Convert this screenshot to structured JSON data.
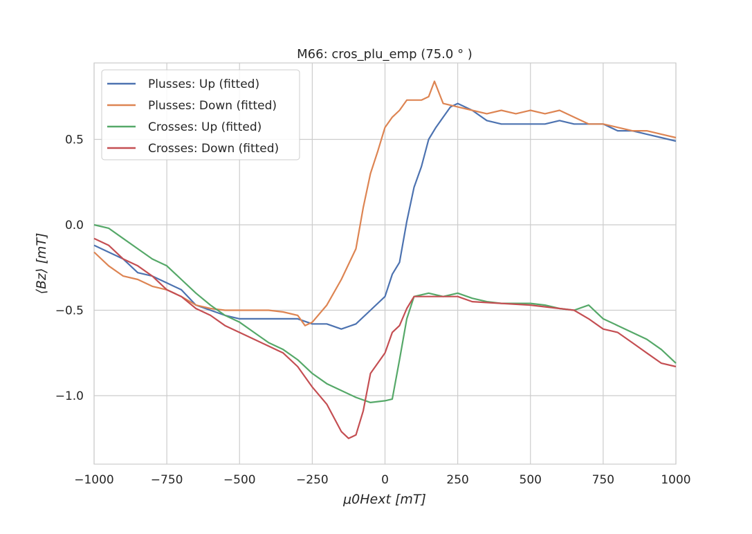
{
  "chart_data": {
    "type": "line",
    "title": "M66: cros_plu_emp (75.0$^\\circ$)",
    "title_display": "M66: cros_plu_emp (75.0 ° )",
    "xlabel": "μ0Hext [mT]",
    "ylabel": "⟨Bz⟩ [mT]",
    "xlim": [
      -1000,
      1000
    ],
    "ylim": [
      -1.4,
      0.95
    ],
    "grid": true,
    "legend_position": "top-left",
    "xticks": [
      -1000,
      -750,
      -500,
      -250,
      0,
      250,
      500,
      750,
      1000
    ],
    "xtick_labels": [
      "−1000",
      "−750",
      "−500",
      "−250",
      "0",
      "250",
      "500",
      "750",
      "1000"
    ],
    "yticks": [
      0.5,
      0.0,
      -0.5,
      -1.0
    ],
    "ytick_labels": [
      "0.5",
      "0.0",
      "−0.5",
      "−1.0"
    ],
    "series": [
      {
        "name": "Plusses: Up (fitted)",
        "color": "#4c72b0",
        "x": [
          -1000,
          -950,
          -900,
          -850,
          -800,
          -750,
          -700,
          -650,
          -600,
          -550,
          -500,
          -450,
          -400,
          -350,
          -300,
          -250,
          -200,
          -150,
          -100,
          -50,
          0,
          25,
          50,
          75,
          100,
          125,
          150,
          175,
          200,
          225,
          250,
          300,
          350,
          400,
          450,
          500,
          550,
          600,
          650,
          700,
          750,
          800,
          850,
          900,
          950,
          1000
        ],
        "y": [
          -0.12,
          -0.16,
          -0.2,
          -0.28,
          -0.3,
          -0.34,
          -0.38,
          -0.47,
          -0.5,
          -0.53,
          -0.55,
          -0.55,
          -0.55,
          -0.55,
          -0.55,
          -0.58,
          -0.58,
          -0.61,
          -0.58,
          -0.5,
          -0.42,
          -0.29,
          -0.22,
          0.02,
          0.22,
          0.34,
          0.5,
          0.57,
          0.63,
          0.69,
          0.71,
          0.67,
          0.61,
          0.59,
          0.59,
          0.59,
          0.59,
          0.61,
          0.59,
          0.59,
          0.59,
          0.55,
          0.55,
          0.53,
          0.51,
          0.49
        ]
      },
      {
        "name": "Plusses: Down (fitted)",
        "color": "#dd8452",
        "x": [
          -1000,
          -950,
          -900,
          -850,
          -800,
          -750,
          -700,
          -650,
          -600,
          -550,
          -500,
          -450,
          -400,
          -350,
          -300,
          -275,
          -250,
          -200,
          -150,
          -100,
          -75,
          -50,
          -25,
          0,
          25,
          50,
          75,
          100,
          125,
          150,
          170,
          200,
          250,
          300,
          350,
          400,
          450,
          500,
          550,
          600,
          650,
          700,
          750,
          800,
          850,
          900,
          950,
          1000
        ],
        "y": [
          -0.16,
          -0.24,
          -0.3,
          -0.32,
          -0.36,
          -0.38,
          -0.42,
          -0.47,
          -0.49,
          -0.5,
          -0.5,
          -0.5,
          -0.5,
          -0.51,
          -0.53,
          -0.59,
          -0.57,
          -0.47,
          -0.32,
          -0.14,
          0.1,
          0.3,
          0.43,
          0.57,
          0.63,
          0.67,
          0.73,
          0.73,
          0.73,
          0.75,
          0.84,
          0.71,
          0.69,
          0.67,
          0.65,
          0.67,
          0.65,
          0.67,
          0.65,
          0.67,
          0.63,
          0.59,
          0.59,
          0.57,
          0.55,
          0.55,
          0.53,
          0.51
        ]
      },
      {
        "name": "Crosses: Up (fitted)",
        "color": "#55a868",
        "x": [
          -1000,
          -950,
          -900,
          -850,
          -800,
          -750,
          -700,
          -650,
          -600,
          -550,
          -500,
          -450,
          -400,
          -350,
          -300,
          -250,
          -200,
          -150,
          -100,
          -50,
          0,
          25,
          50,
          75,
          100,
          150,
          200,
          250,
          300,
          350,
          400,
          450,
          500,
          550,
          600,
          650,
          700,
          750,
          800,
          850,
          900,
          950,
          1000
        ],
        "y": [
          0.0,
          -0.02,
          -0.08,
          -0.14,
          -0.2,
          -0.24,
          -0.32,
          -0.4,
          -0.47,
          -0.53,
          -0.57,
          -0.63,
          -0.69,
          -0.73,
          -0.79,
          -0.87,
          -0.93,
          -0.97,
          -1.01,
          -1.04,
          -1.03,
          -1.02,
          -0.79,
          -0.55,
          -0.42,
          -0.4,
          -0.42,
          -0.4,
          -0.43,
          -0.45,
          -0.46,
          -0.46,
          -0.46,
          -0.47,
          -0.49,
          -0.5,
          -0.47,
          -0.55,
          -0.59,
          -0.63,
          -0.67,
          -0.73,
          -0.81
        ]
      },
      {
        "name": "Crosses: Down (fitted)",
        "color": "#c44e52",
        "x": [
          -1000,
          -950,
          -900,
          -850,
          -800,
          -750,
          -700,
          -650,
          -600,
          -550,
          -500,
          -450,
          -400,
          -350,
          -300,
          -250,
          -200,
          -150,
          -125,
          -100,
          -75,
          -50,
          0,
          25,
          50,
          75,
          100,
          150,
          200,
          250,
          300,
          400,
          500,
          600,
          650,
          700,
          750,
          800,
          850,
          900,
          950,
          1000
        ],
        "y": [
          -0.08,
          -0.12,
          -0.2,
          -0.24,
          -0.3,
          -0.38,
          -0.42,
          -0.49,
          -0.53,
          -0.59,
          -0.63,
          -0.67,
          -0.71,
          -0.75,
          -0.83,
          -0.95,
          -1.05,
          -1.21,
          -1.25,
          -1.23,
          -1.09,
          -0.87,
          -0.75,
          -0.63,
          -0.59,
          -0.49,
          -0.42,
          -0.42,
          -0.42,
          -0.42,
          -0.45,
          -0.46,
          -0.47,
          -0.49,
          -0.5,
          -0.55,
          -0.61,
          -0.63,
          -0.69,
          -0.75,
          -0.81,
          -0.83
        ]
      }
    ]
  }
}
